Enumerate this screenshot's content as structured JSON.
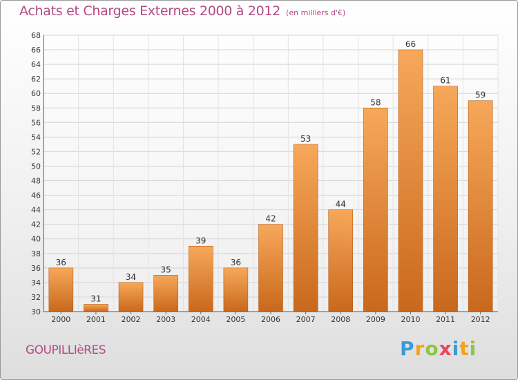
{
  "header": {
    "title": "Achats et Charges Externes 2000 à 2012",
    "unit": "(en milliers d'€)"
  },
  "footer": {
    "town": "GOUPILLIèRES",
    "logo_letters": [
      "P",
      "r",
      "o",
      "x",
      "i",
      "t",
      "i"
    ],
    "logo_colors": [
      "#3a9bd9",
      "#f2a21c",
      "#8dc63f",
      "#e8475f",
      "#3a9bd9",
      "#f2a21c",
      "#8dc63f"
    ]
  },
  "chart_data": {
    "type": "bar",
    "title": "Achats et Charges Externes 2000 à 2012",
    "categories": [
      "2000",
      "2001",
      "2002",
      "2003",
      "2004",
      "2005",
      "2006",
      "2007",
      "2008",
      "2009",
      "2010",
      "2011",
      "2012"
    ],
    "values": [
      36,
      31,
      34,
      35,
      39,
      36,
      42,
      53,
      44,
      58,
      66,
      61,
      59
    ],
    "ylim": [
      30,
      68
    ],
    "yticks": [
      30,
      32,
      34,
      36,
      38,
      40,
      42,
      44,
      46,
      48,
      50,
      52,
      54,
      56,
      58,
      60,
      62,
      64,
      66,
      68
    ],
    "grid": true,
    "legend": "none",
    "bar_color_light": "#f7a85a",
    "bar_color_dark": "#c9681c"
  }
}
